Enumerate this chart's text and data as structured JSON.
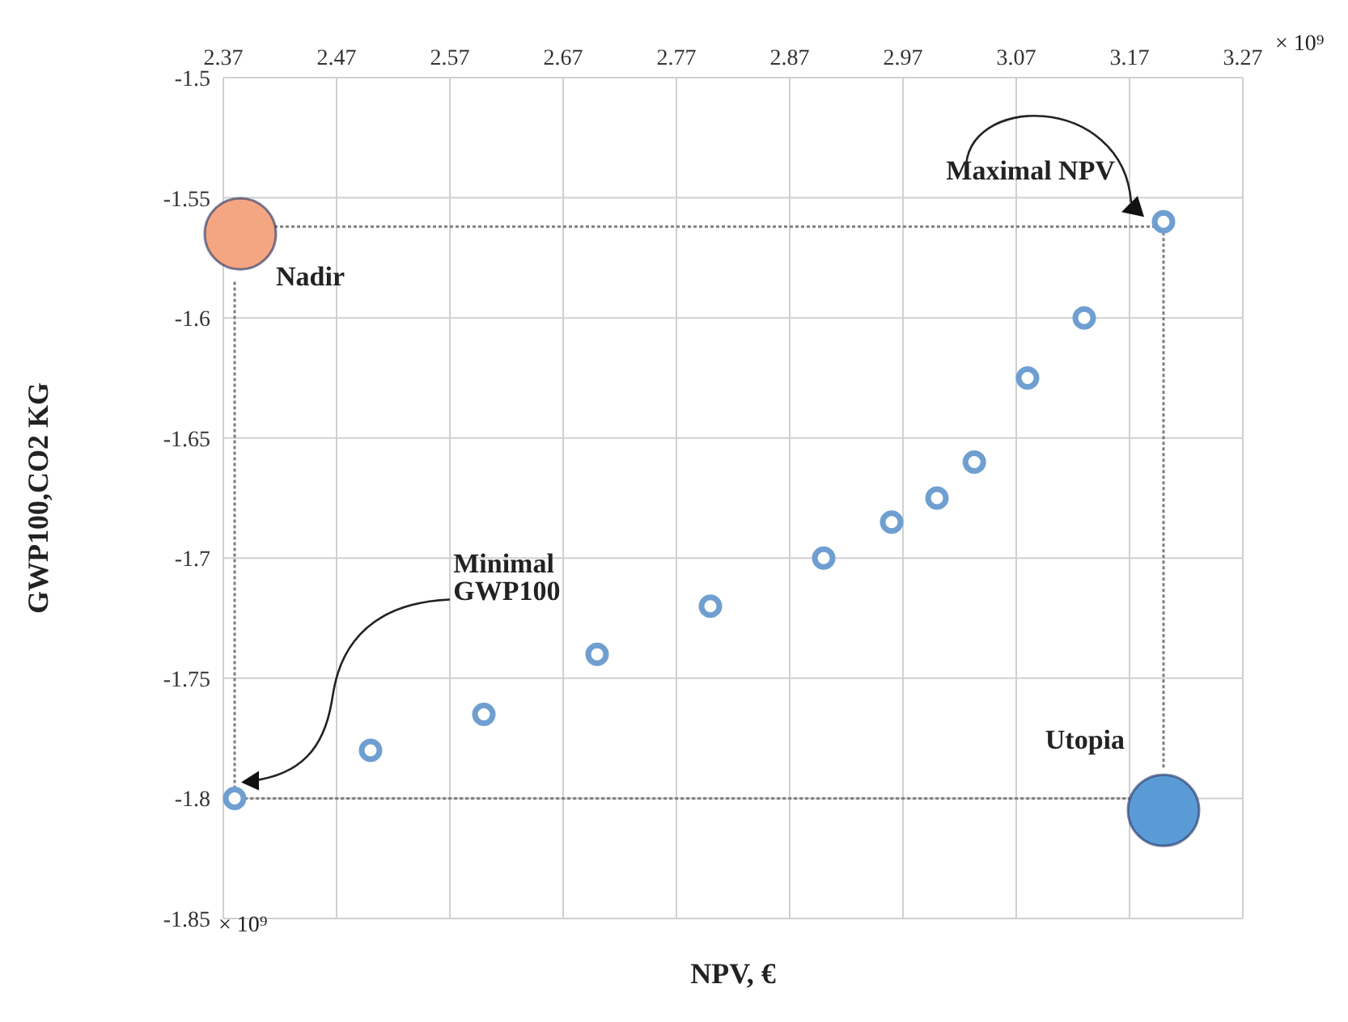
{
  "chart_data": {
    "type": "scatter",
    "xlabel": "NPV, €",
    "ylabel": "GWP100,CO2 KG",
    "xlim": [
      2.37,
      3.27
    ],
    "xticks": [
      2.37,
      2.47,
      2.57,
      2.67,
      2.77,
      2.87,
      2.97,
      3.07,
      3.17,
      3.27
    ],
    "ylim": [
      -1.85,
      -1.5
    ],
    "yticks": [
      -1.85,
      -1.8,
      -1.75,
      -1.7,
      -1.65,
      -1.6,
      -1.55,
      -1.5
    ],
    "grid": true,
    "legend": false,
    "series": [
      {
        "type": "line",
        "color": "#7f7f7f",
        "line_style": "dotted",
        "marker": "none",
        "x": [
          2.415,
          3.2,
          3.2
        ],
        "values": [
          -1.562,
          -1.562,
          -1.788
        ]
      },
      {
        "type": "line",
        "color": "#7f7f7f",
        "line_style": "dotted",
        "marker": "none",
        "x": [
          2.38,
          2.38,
          3.17
        ],
        "values": [
          -1.585,
          -1.8,
          -1.8
        ]
      },
      {
        "type": "scatter",
        "color": "#6f9fd0",
        "marker": "circle",
        "x": [
          2.38,
          2.5,
          2.6,
          2.7,
          2.8,
          2.9,
          2.96,
          3.0,
          3.033,
          3.08,
          3.13,
          3.2
        ],
        "values": [
          -1.8,
          -1.78,
          -1.765,
          -1.74,
          -1.72,
          -1.7,
          -1.685,
          -1.675,
          -1.66,
          -1.625,
          -1.6,
          -1.56
        ]
      },
      {
        "type": "bubble",
        "name": "Nadir",
        "color": "#f4a582",
        "x": [
          2.385
        ],
        "values": [
          -1.565
        ],
        "sizes": [
          1
        ]
      },
      {
        "type": "bubble",
        "name": "Utopia",
        "color": "#5b9bd5",
        "x": [
          3.2
        ],
        "values": [
          -1.805
        ],
        "sizes": [
          1
        ]
      }
    ],
    "annotations": [
      {
        "text": "Maximal NPV",
        "x": 3.2,
        "y": -1.56
      },
      "Minimal GWP100",
      "× 10⁹",
      "× 10⁹"
    ]
  }
}
